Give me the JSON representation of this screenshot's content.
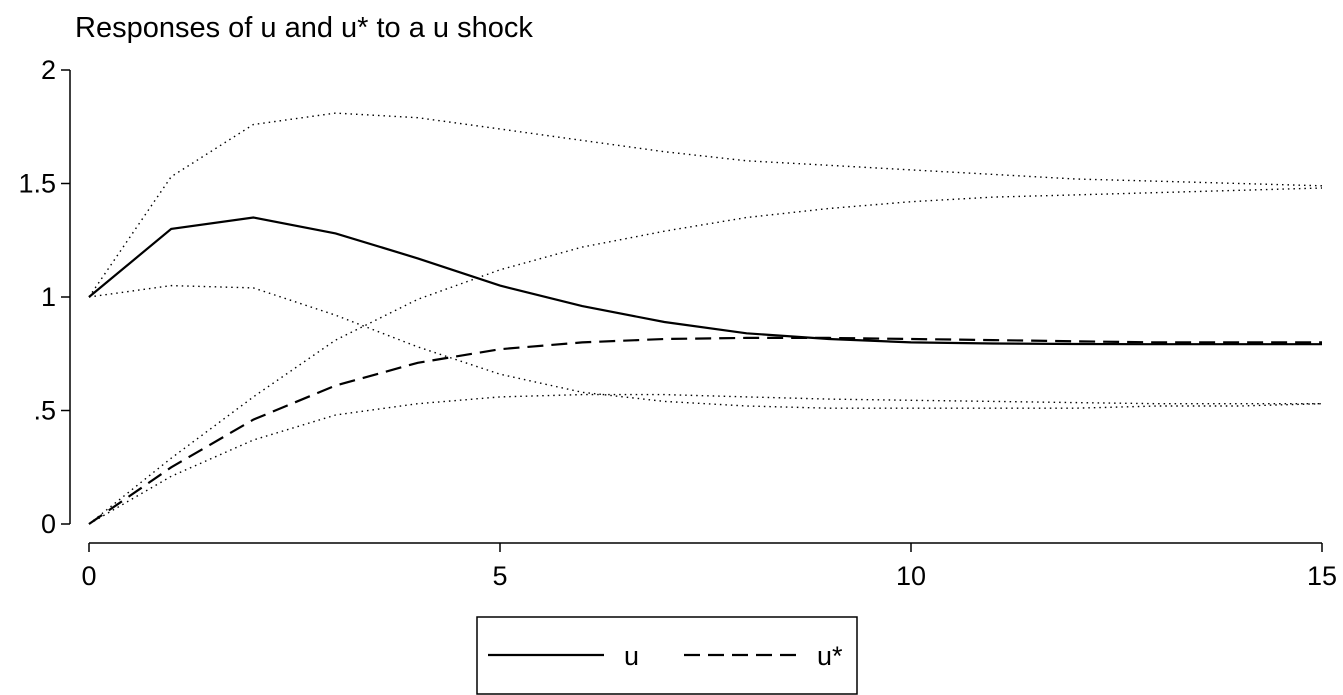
{
  "chart_data": {
    "type": "line",
    "title": "Responses of u and u* to a u shock",
    "xlabel": "",
    "ylabel": "",
    "xlim": [
      0,
      15
    ],
    "ylim": [
      0,
      2
    ],
    "x_ticks": [
      0,
      5,
      10,
      15
    ],
    "y_ticks": [
      {
        "value": 0,
        "label": "0"
      },
      {
        "value": 0.5,
        "label": ".5"
      },
      {
        "value": 1,
        "label": "1"
      },
      {
        "value": 1.5,
        "label": "1.5"
      },
      {
        "value": 2,
        "label": "2"
      }
    ],
    "grid": false,
    "legend": "bottom",
    "x": [
      0,
      1,
      2,
      3,
      4,
      5,
      6,
      7,
      8,
      9,
      10,
      11,
      12,
      13,
      14,
      15
    ],
    "series": [
      {
        "name": "u",
        "style": "solid",
        "values": [
          1.0,
          1.3,
          1.35,
          1.28,
          1.17,
          1.05,
          0.96,
          0.89,
          0.84,
          0.815,
          0.8,
          0.795,
          0.793,
          0.792,
          0.792,
          0.792
        ]
      },
      {
        "name": "u*",
        "style": "dashed",
        "values": [
          0.0,
          0.25,
          0.46,
          0.61,
          0.71,
          0.77,
          0.8,
          0.815,
          0.82,
          0.82,
          0.815,
          0.81,
          0.805,
          0.8,
          0.8,
          0.8
        ]
      }
    ],
    "confidence_bands": [
      {
        "style": "dotted",
        "values": [
          1.0,
          1.53,
          1.76,
          1.81,
          1.79,
          1.74,
          1.69,
          1.64,
          1.6,
          1.58,
          1.56,
          1.54,
          1.52,
          1.51,
          1.5,
          1.49
        ]
      },
      {
        "style": "dotted",
        "values": [
          1.0,
          1.05,
          1.04,
          0.92,
          0.78,
          0.66,
          0.58,
          0.54,
          0.52,
          0.51,
          0.51,
          0.51,
          0.51,
          0.52,
          0.52,
          0.53
        ]
      },
      {
        "style": "dotted",
        "values": [
          0.0,
          0.29,
          0.56,
          0.81,
          0.99,
          1.12,
          1.22,
          1.29,
          1.35,
          1.39,
          1.42,
          1.44,
          1.45,
          1.46,
          1.47,
          1.48
        ]
      },
      {
        "style": "dotted",
        "values": [
          0.0,
          0.21,
          0.37,
          0.48,
          0.53,
          0.56,
          0.57,
          0.57,
          0.56,
          0.55,
          0.545,
          0.54,
          0.535,
          0.53,
          0.53,
          0.53
        ]
      }
    ]
  }
}
